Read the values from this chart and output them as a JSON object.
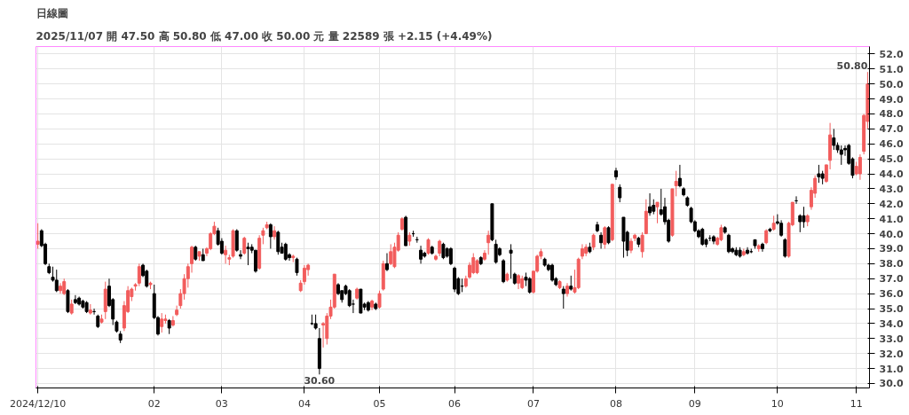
{
  "chart_data": {
    "type": "candlestick",
    "title": "日線圖",
    "subtitle": "2025/11/07 開 47.50 高 50.80 低 47.00 收 50.00 元 量 22589 張 +2.15 (+4.49%)",
    "categories": [
      "2024/12/10",
      null,
      null,
      null,
      null,
      null,
      null,
      null,
      null,
      null,
      null,
      null,
      null,
      null,
      null,
      null,
      null,
      null,
      null,
      null,
      null,
      null,
      null,
      null,
      null,
      null,
      null,
      null,
      null,
      null,
      null,
      "02",
      null,
      null,
      null,
      null,
      null,
      null,
      null,
      null,
      null,
      null,
      null,
      null,
      null,
      null,
      null,
      null,
      null,
      "03",
      null,
      null,
      null,
      null,
      null,
      null,
      null,
      null,
      null,
      null,
      null,
      null,
      null,
      null,
      null,
      null,
      null,
      null,
      null,
      null,
      null,
      "04",
      null,
      null,
      null,
      null,
      null,
      null,
      null,
      null,
      null,
      null,
      null,
      null,
      null,
      null,
      null,
      null,
      null,
      null,
      null,
      "05",
      null,
      null,
      null,
      null,
      null,
      null,
      null,
      null,
      null,
      null,
      null,
      null,
      null,
      null,
      null,
      null,
      null,
      null,
      null,
      "06",
      null,
      null,
      null,
      null,
      null,
      null,
      null,
      null,
      null,
      null,
      null,
      null,
      null,
      null,
      null,
      null,
      null,
      null,
      null,
      null,
      "07",
      null,
      null,
      null,
      null,
      null,
      null,
      null,
      null,
      null,
      null,
      null,
      null,
      null,
      null,
      null,
      null,
      null,
      null,
      null,
      null,
      null,
      "08",
      null,
      null,
      null,
      null,
      null,
      null,
      null,
      null,
      null,
      null,
      null,
      null,
      null,
      null,
      null,
      null,
      null,
      null,
      null,
      null,
      "09",
      null,
      null,
      null,
      null,
      null,
      null,
      null,
      null,
      null,
      null,
      null,
      null,
      null,
      null,
      null,
      null,
      null,
      null,
      null,
      null,
      null,
      "10",
      null,
      null,
      null,
      null,
      null,
      null,
      null,
      null,
      null,
      null,
      null,
      null,
      null,
      null,
      null,
      null,
      null,
      null,
      null,
      null,
      "11",
      null,
      null,
      null
    ],
    "ohlc": [
      [
        39.3,
        40.7,
        39.0,
        39.5
      ],
      [
        40.2,
        40.3,
        39.1,
        39.2
      ],
      [
        39.3,
        39.4,
        37.9,
        38.0
      ],
      [
        37.8,
        38.0,
        37.3,
        37.4
      ],
      [
        37.1,
        37.8,
        36.8,
        36.9
      ],
      [
        36.9,
        37.6,
        36.1,
        36.2
      ],
      [
        36.2,
        36.7,
        36.0,
        36.5
      ],
      [
        36.0,
        37.0,
        35.9,
        36.8
      ],
      [
        36.2,
        36.3,
        34.7,
        34.8
      ],
      [
        34.7,
        35.6,
        34.6,
        35.3
      ],
      [
        35.6,
        35.9,
        35.3,
        35.4
      ],
      [
        35.7,
        35.8,
        35.2,
        35.3
      ],
      [
        35.5,
        35.6,
        35.0,
        35.1
      ],
      [
        35.4,
        35.5,
        34.7,
        34.8
      ],
      [
        34.7,
        35.3,
        34.6,
        34.9
      ],
      [
        34.8,
        35.0,
        34.6,
        34.8
      ],
      [
        34.5,
        34.6,
        33.7,
        33.8
      ],
      [
        34.1,
        34.6,
        34.0,
        34.3
      ],
      [
        34.8,
        36.8,
        34.3,
        36.3
      ],
      [
        36.5,
        37.0,
        35.1,
        35.2
      ],
      [
        35.6,
        35.7,
        33.9,
        34.3
      ],
      [
        34.1,
        34.2,
        33.4,
        33.5
      ],
      [
        33.3,
        33.5,
        32.7,
        32.9
      ],
      [
        33.7,
        35.5,
        33.5,
        35.2
      ],
      [
        34.8,
        36.5,
        34.7,
        36.2
      ],
      [
        35.8,
        36.4,
        35.5,
        36.3
      ],
      [
        36.5,
        36.7,
        36.2,
        36.6
      ],
      [
        36.7,
        38.0,
        36.5,
        37.8
      ],
      [
        37.9,
        38.0,
        37.1,
        37.2
      ],
      [
        37.5,
        37.6,
        36.4,
        36.5
      ],
      [
        36.6,
        36.8,
        36.3,
        36.7
      ],
      [
        36.0,
        36.6,
        34.3,
        34.4
      ],
      [
        34.4,
        34.5,
        33.2,
        33.3
      ],
      [
        33.8,
        34.7,
        33.4,
        34.3
      ],
      [
        34.2,
        34.6,
        34.0,
        34.3
      ],
      [
        34.2,
        34.3,
        33.3,
        33.7
      ],
      [
        33.9,
        34.5,
        33.8,
        34.2
      ],
      [
        34.6,
        35.2,
        34.5,
        34.9
      ],
      [
        35.2,
        36.3,
        35.0,
        36.0
      ],
      [
        36.0,
        37.3,
        35.6,
        37.0
      ],
      [
        37.0,
        38.0,
        36.4,
        37.8
      ],
      [
        38.0,
        39.2,
        37.4,
        39.1
      ],
      [
        39.1,
        39.2,
        38.2,
        38.3
      ],
      [
        38.5,
        38.8,
        38.2,
        38.8
      ],
      [
        38.6,
        39.0,
        38.2,
        38.2
      ],
      [
        38.7,
        39.1,
        38.5,
        39.0
      ],
      [
        39.0,
        40.1,
        38.9,
        40.0
      ],
      [
        40.0,
        40.8,
        39.9,
        40.5
      ],
      [
        40.2,
        40.4,
        39.2,
        39.3
      ],
      [
        39.5,
        39.7,
        38.6,
        38.7
      ],
      [
        38.6,
        39.2,
        38.0,
        38.9
      ],
      [
        38.3,
        38.6,
        37.9,
        38.4
      ],
      [
        38.5,
        40.3,
        38.4,
        40.2
      ],
      [
        40.2,
        40.3,
        38.8,
        38.9
      ],
      [
        38.6,
        38.9,
        38.3,
        38.5
      ],
      [
        38.7,
        39.8,
        38.6,
        39.7
      ],
      [
        39.1,
        39.4,
        37.9,
        39.0
      ],
      [
        39.1,
        39.3,
        38.7,
        38.9
      ],
      [
        38.9,
        38.9,
        37.4,
        37.5
      ],
      [
        37.7,
        39.9,
        37.6,
        39.7
      ],
      [
        39.9,
        40.4,
        39.3,
        40.2
      ],
      [
        40.4,
        40.8,
        40.3,
        40.6
      ],
      [
        40.6,
        40.7,
        39.0,
        39.8
      ],
      [
        39.8,
        40.5,
        39.6,
        40.2
      ],
      [
        40.1,
        40.2,
        38.6,
        38.8
      ],
      [
        39.1,
        39.4,
        38.7,
        38.7
      ],
      [
        39.3,
        39.4,
        38.2,
        38.3
      ],
      [
        38.6,
        38.7,
        38.2,
        38.4
      ],
      [
        38.4,
        38.6,
        38.1,
        38.5
      ],
      [
        38.3,
        38.4,
        37.2,
        37.4
      ],
      [
        36.2,
        36.9,
        36.1,
        36.7
      ],
      [
        36.8,
        37.9,
        36.6,
        37.7
      ],
      [
        37.6,
        38.0,
        37.2,
        37.9
      ],
      [
        34.0,
        34.6,
        33.9,
        34.0
      ],
      [
        34.0,
        34.6,
        33.6,
        33.7
      ],
      [
        33.0,
        33.7,
        30.6,
        31.0
      ],
      [
        33.9,
        34.1,
        32.4,
        34.0
      ],
      [
        33.0,
        34.7,
        32.6,
        34.5
      ],
      [
        34.5,
        35.6,
        34.3,
        35.1
      ],
      [
        35.1,
        37.3,
        35.0,
        37.3
      ],
      [
        36.6,
        36.7,
        35.9,
        36.0
      ],
      [
        36.2,
        36.2,
        35.4,
        35.6
      ],
      [
        36.5,
        36.6,
        35.9,
        36.0
      ],
      [
        36.2,
        36.3,
        35.1,
        35.2
      ],
      [
        35.3,
        35.6,
        34.7,
        35.3
      ],
      [
        35.7,
        36.4,
        35.6,
        36.3
      ],
      [
        36.3,
        36.3,
        34.7,
        34.7
      ],
      [
        35.3,
        35.4,
        34.9,
        35.1
      ],
      [
        35.4,
        35.5,
        34.8,
        34.9
      ],
      [
        35.1,
        35.6,
        34.9,
        35.5
      ],
      [
        35.3,
        35.4,
        34.9,
        35.0
      ],
      [
        35.1,
        36.2,
        35.0,
        36.0
      ],
      [
        36.3,
        38.2,
        36.2,
        38.0
      ],
      [
        38.0,
        38.7,
        37.5,
        37.6
      ],
      [
        38.0,
        39.3,
        37.9,
        38.8
      ],
      [
        37.8,
        39.4,
        37.7,
        39.1
      ],
      [
        38.9,
        40.1,
        38.8,
        39.9
      ],
      [
        40.3,
        41.1,
        40.2,
        41.0
      ],
      [
        41.1,
        41.2,
        39.2,
        39.2
      ],
      [
        39.5,
        40.1,
        39.2,
        39.9
      ],
      [
        40.0,
        40.2,
        39.8,
        40.0
      ],
      [
        39.6,
        39.8,
        39.4,
        39.6
      ],
      [
        38.9,
        39.2,
        38.0,
        38.3
      ],
      [
        38.7,
        38.8,
        38.4,
        38.5
      ],
      [
        38.7,
        39.7,
        38.6,
        39.6
      ],
      [
        39.1,
        39.2,
        38.6,
        38.7
      ],
      [
        38.3,
        38.6,
        38.2,
        38.5
      ],
      [
        38.7,
        39.6,
        38.5,
        39.5
      ],
      [
        39.3,
        39.4,
        38.3,
        38.4
      ],
      [
        39.0,
        39.1,
        38.4,
        38.5
      ],
      [
        39.0,
        39.1,
        37.9,
        38.0
      ],
      [
        37.7,
        37.8,
        36.1,
        36.3
      ],
      [
        37.0,
        37.1,
        35.9,
        36.0
      ],
      [
        36.5,
        37.0,
        36.1,
        36.5
      ],
      [
        36.5,
        37.2,
        36.4,
        37.0
      ],
      [
        37.1,
        38.1,
        37.0,
        37.9
      ],
      [
        37.4,
        38.7,
        37.3,
        38.4
      ],
      [
        37.4,
        38.3,
        37.3,
        38.2
      ],
      [
        38.4,
        38.5,
        37.9,
        38.0
      ],
      [
        38.3,
        38.9,
        38.2,
        38.7
      ],
      [
        39.4,
        40.2,
        38.6,
        39.9
      ],
      [
        42.0,
        42.0,
        39.5,
        39.6
      ],
      [
        39.3,
        39.6,
        38.0,
        38.1
      ],
      [
        39.0,
        39.1,
        38.5,
        38.6
      ],
      [
        38.2,
        38.3,
        36.7,
        36.8
      ],
      [
        36.9,
        37.4,
        36.8,
        37.3
      ],
      [
        38.9,
        39.3,
        37.0,
        38.7
      ],
      [
        37.3,
        37.4,
        36.6,
        36.7
      ],
      [
        36.7,
        37.3,
        36.3,
        37.2
      ],
      [
        36.4,
        37.2,
        36.3,
        37.0
      ],
      [
        37.1,
        37.4,
        36.5,
        36.9
      ],
      [
        37.0,
        37.1,
        36.0,
        36.1
      ],
      [
        36.1,
        37.5,
        36.0,
        37.5
      ],
      [
        37.5,
        38.6,
        37.4,
        38.5
      ],
      [
        38.5,
        39.0,
        38.3,
        38.8
      ],
      [
        38.3,
        38.4,
        37.8,
        37.9
      ],
      [
        37.9,
        38.0,
        37.5,
        37.6
      ],
      [
        37.9,
        38.0,
        36.8,
        36.9
      ],
      [
        37.0,
        37.1,
        36.5,
        36.6
      ],
      [
        36.4,
        36.9,
        36.3,
        36.8
      ],
      [
        36.3,
        36.5,
        35.0,
        36.0
      ],
      [
        36.0,
        36.7,
        35.8,
        36.5
      ],
      [
        36.5,
        37.2,
        36.2,
        36.3
      ],
      [
        36.1,
        37.6,
        36.0,
        36.4
      ],
      [
        36.4,
        38.4,
        36.3,
        38.3
      ],
      [
        38.5,
        39.3,
        38.3,
        39.0
      ],
      [
        38.7,
        39.3,
        38.5,
        39.1
      ],
      [
        39.1,
        39.4,
        38.7,
        38.8
      ],
      [
        39.1,
        40.0,
        38.9,
        39.9
      ],
      [
        40.6,
        40.8,
        40.1,
        40.2
      ],
      [
        39.9,
        40.1,
        39.0,
        39.4
      ],
      [
        39.3,
        40.5,
        39.0,
        40.4
      ],
      [
        40.4,
        40.5,
        39.3,
        39.4
      ],
      [
        39.6,
        43.3,
        39.5,
        43.3
      ],
      [
        44.2,
        44.4,
        43.6,
        43.8
      ],
      [
        43.1,
        43.3,
        42.1,
        42.4
      ],
      [
        41.1,
        41.1,
        38.4,
        39.5
      ],
      [
        40.1,
        40.2,
        38.5,
        38.9
      ],
      [
        38.9,
        39.7,
        38.7,
        39.5
      ],
      [
        39.7,
        40.0,
        39.5,
        39.9
      ],
      [
        39.7,
        39.8,
        39.1,
        39.3
      ],
      [
        38.8,
        40.1,
        38.4,
        39.9
      ],
      [
        40.0,
        42.3,
        40.0,
        41.5
      ],
      [
        41.8,
        42.7,
        41.2,
        41.4
      ],
      [
        41.9,
        42.3,
        41.3,
        41.5
      ],
      [
        41.8,
        42.1,
        40.7,
        42.1
      ],
      [
        41.6,
        43.0,
        41.2,
        41.3
      ],
      [
        41.8,
        42.4,
        40.6,
        40.8
      ],
      [
        40.9,
        41.0,
        39.4,
        39.5
      ],
      [
        39.9,
        43.0,
        39.8,
        43.0
      ],
      [
        43.2,
        44.2,
        42.5,
        43.5
      ],
      [
        43.7,
        44.6,
        43.1,
        43.2
      ],
      [
        43.0,
        43.1,
        42.5,
        42.6
      ],
      [
        42.4,
        42.5,
        41.8,
        41.9
      ],
      [
        41.7,
        41.8,
        40.7,
        40.8
      ],
      [
        40.8,
        40.9,
        40.1,
        40.2
      ],
      [
        40.2,
        40.3,
        39.7,
        39.8
      ],
      [
        40.3,
        40.4,
        39.2,
        39.3
      ],
      [
        39.6,
        39.7,
        39.1,
        39.3
      ],
      [
        39.7,
        39.9,
        39.5,
        39.7
      ],
      [
        39.8,
        39.9,
        39.3,
        39.5
      ],
      [
        39.3,
        39.8,
        39.2,
        39.7
      ],
      [
        39.6,
        40.6,
        39.5,
        40.4
      ],
      [
        40.4,
        40.5,
        40.0,
        40.1
      ],
      [
        39.9,
        40.0,
        38.7,
        38.8
      ],
      [
        39.0,
        39.1,
        38.7,
        38.8
      ],
      [
        38.9,
        39.1,
        38.5,
        38.6
      ],
      [
        38.9,
        39.1,
        38.4,
        38.5
      ],
      [
        38.6,
        39.0,
        38.5,
        38.8
      ],
      [
        38.9,
        39.1,
        38.6,
        38.7
      ],
      [
        38.8,
        39.0,
        38.7,
        38.8
      ],
      [
        39.6,
        39.6,
        39.0,
        39.2
      ],
      [
        39.0,
        39.3,
        38.8,
        39.2
      ],
      [
        39.3,
        39.4,
        38.8,
        39.0
      ],
      [
        39.4,
        40.3,
        39.3,
        40.2
      ],
      [
        40.3,
        40.4,
        40.1,
        40.2
      ],
      [
        40.3,
        41.2,
        40.2,
        40.7
      ],
      [
        40.8,
        41.3,
        40.6,
        40.7
      ],
      [
        40.7,
        40.9,
        39.8,
        39.9
      ],
      [
        39.6,
        39.7,
        38.4,
        38.5
      ],
      [
        38.5,
        40.8,
        38.4,
        40.7
      ],
      [
        40.6,
        42.1,
        40.5,
        42.1
      ],
      [
        42.2,
        42.5,
        42.0,
        42.2
      ],
      [
        41.2,
        41.3,
        40.1,
        40.8
      ],
      [
        41.2,
        41.8,
        40.4,
        40.8
      ],
      [
        40.8,
        41.3,
        40.5,
        41.2
      ],
      [
        41.8,
        43.1,
        41.6,
        42.9
      ],
      [
        42.7,
        43.9,
        42.4,
        43.7
      ],
      [
        44.0,
        44.6,
        43.4,
        43.8
      ],
      [
        44.0,
        44.2,
        43.3,
        43.7
      ],
      [
        43.5,
        44.6,
        43.4,
        44.6
      ],
      [
        44.9,
        47.4,
        44.3,
        46.6
      ],
      [
        46.4,
        47.0,
        45.6,
        45.9
      ],
      [
        45.9,
        46.1,
        45.4,
        45.6
      ],
      [
        45.6,
        45.9,
        44.6,
        45.3
      ],
      [
        45.7,
        45.9,
        45.2,
        45.6
      ],
      [
        45.9,
        46.0,
        44.6,
        44.7
      ],
      [
        45.0,
        45.1,
        43.7,
        43.9
      ],
      [
        44.0,
        44.8,
        43.9,
        44.5
      ],
      [
        44.0,
        45.3,
        43.6,
        45.1
      ],
      [
        45.5,
        48.0,
        45.3,
        47.9
      ],
      [
        47.5,
        50.8,
        47.0,
        50.0
      ]
    ],
    "ylim": [
      29.7,
      52.5
    ],
    "yticks": [
      {
        "value": 30,
        "label": "30.0"
      },
      {
        "value": 31,
        "label": "31.0"
      },
      {
        "value": 32,
        "label": "32.0"
      },
      {
        "value": 33,
        "label": "33.0"
      },
      {
        "value": 34,
        "label": "34.0"
      },
      {
        "value": 35,
        "label": "35.0"
      },
      {
        "value": 36,
        "label": "36.0"
      },
      {
        "value": 37,
        "label": "37.0"
      },
      {
        "value": 38,
        "label": "38.0"
      },
      {
        "value": 39,
        "label": "39.0"
      },
      {
        "value": 40,
        "label": "40.0"
      },
      {
        "value": 41,
        "label": "41.0"
      },
      {
        "value": 42,
        "label": "42.0"
      },
      {
        "value": 43,
        "label": "43.0"
      },
      {
        "value": 44,
        "label": "44.0"
      },
      {
        "value": 45,
        "label": "45.0"
      },
      {
        "value": 46,
        "label": "46.0"
      },
      {
        "value": 47,
        "label": "47.0"
      },
      {
        "value": 48,
        "label": "48.0"
      },
      {
        "value": 49,
        "label": "49.0"
      },
      {
        "value": 50,
        "label": "50.0"
      },
      {
        "value": 51,
        "label": "51.0"
      },
      {
        "value": 52,
        "label": "52.0"
      }
    ],
    "annotations": [
      "50.80",
      "30.60"
    ],
    "grid": true
  }
}
